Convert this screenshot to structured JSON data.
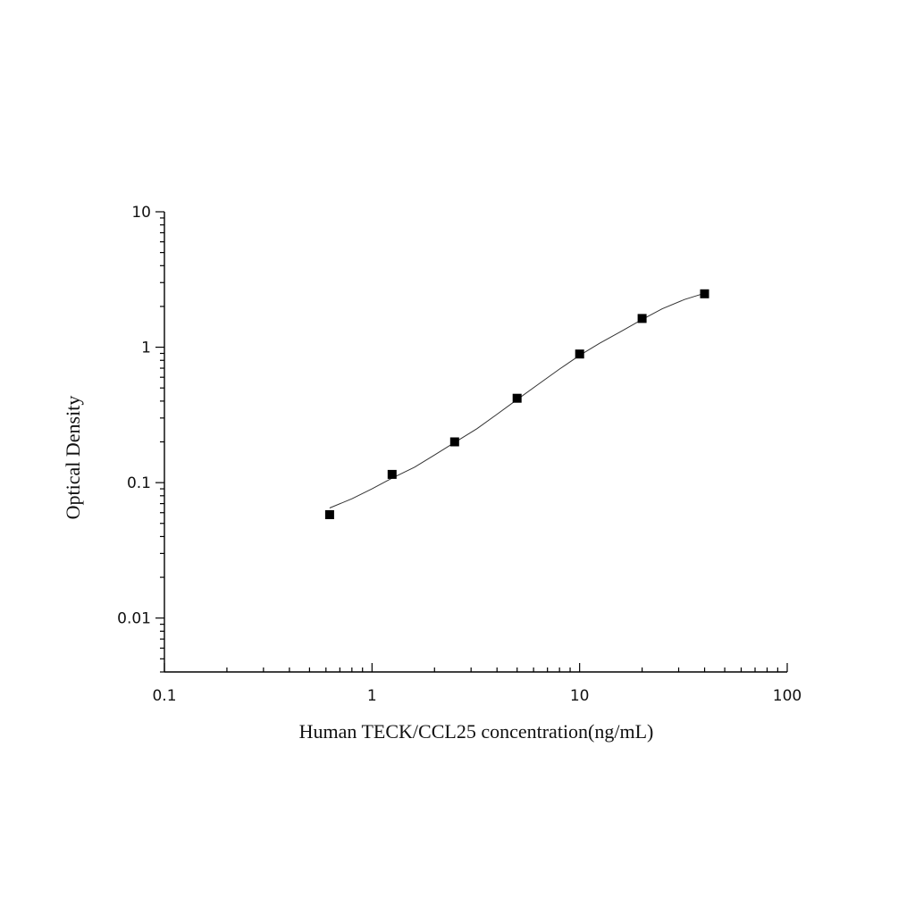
{
  "chart_data": {
    "type": "scatter",
    "xlabel": "Human TECK/CCL25 concentration(ng/mL)",
    "ylabel": "Optical Density",
    "x_scale": "log",
    "y_scale": "log",
    "xlim": [
      0.1,
      100
    ],
    "ylim": [
      0.004,
      10
    ],
    "x_ticks": [
      {
        "value": 0.1,
        "label": "0.1"
      },
      {
        "value": 1,
        "label": "1"
      },
      {
        "value": 10,
        "label": "10"
      },
      {
        "value": 100,
        "label": "100"
      }
    ],
    "y_ticks": [
      {
        "value": 0.01,
        "label": "0.01"
      },
      {
        "value": 0.1,
        "label": "0.1"
      },
      {
        "value": 1,
        "label": "1"
      },
      {
        "value": 10,
        "label": "10"
      }
    ],
    "grid": false,
    "series": [
      {
        "type": "scatter",
        "marker": "square",
        "color": "#000000",
        "x": [
          0.625,
          1.25,
          2.5,
          5,
          10,
          20,
          40
        ],
        "y": [
          0.058,
          0.115,
          0.2,
          0.42,
          0.89,
          1.63,
          2.48
        ]
      },
      {
        "type": "line",
        "color": "#333333",
        "x": [
          0.625,
          0.8,
          1.0,
          1.25,
          1.6,
          2.0,
          2.5,
          3.2,
          4.0,
          5.0,
          6.3,
          8.0,
          10,
          12.5,
          16,
          20,
          25,
          32,
          40
        ],
        "y": [
          0.065,
          0.076,
          0.09,
          0.108,
          0.13,
          0.16,
          0.198,
          0.25,
          0.32,
          0.41,
          0.53,
          0.69,
          0.87,
          1.07,
          1.32,
          1.6,
          1.92,
          2.25,
          2.5
        ]
      }
    ]
  }
}
